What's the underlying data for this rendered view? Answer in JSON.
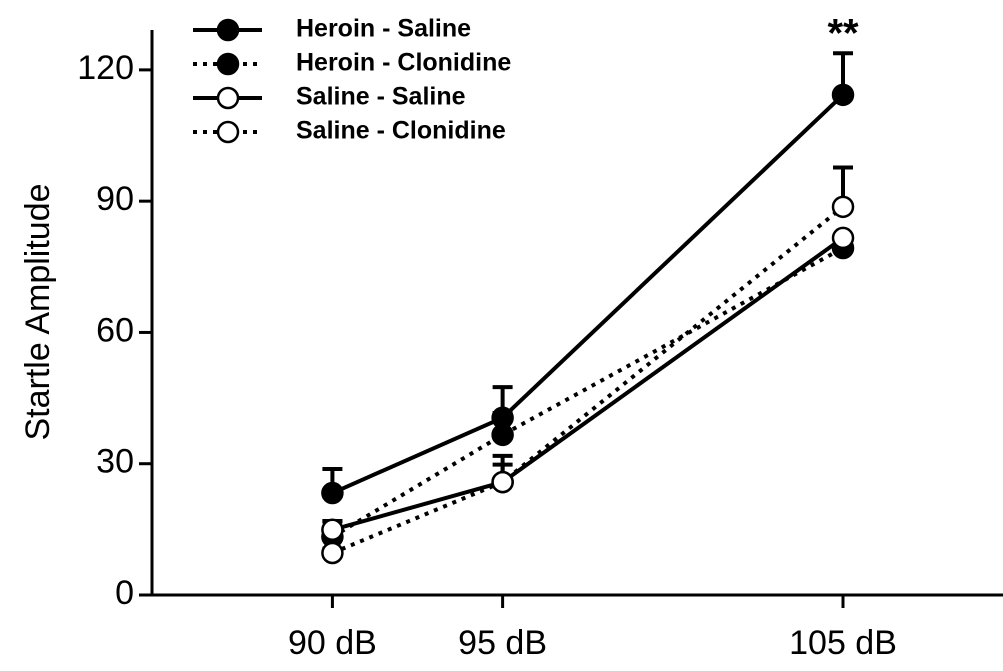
{
  "chart_data": {
    "type": "line",
    "y_label": "Startle Amplitude",
    "x": [
      {
        "value": 90,
        "label": "90 dB"
      },
      {
        "value": 95,
        "label": "95 dB"
      },
      {
        "value": 105,
        "label": "105 dB"
      }
    ],
    "xlim": [
      84.7,
      109.7
    ],
    "ylim": [
      0,
      125
    ],
    "yticks": [
      0,
      30,
      60,
      90,
      120
    ],
    "series": [
      {
        "name": "Heroin - Saline",
        "color": "#000000",
        "dash": "solid",
        "marker": "filled",
        "values": [
          23.3,
          40.5,
          114.3
        ],
        "errors": [
          5.5,
          7,
          9.5
        ]
      },
      {
        "name": "Heroin - Clonidine",
        "color": "#000000",
        "dash": "dotted",
        "marker": "filled",
        "values": [
          13.3,
          36.6,
          79.3
        ],
        "errors": [
          3.5,
          5,
          0
        ]
      },
      {
        "name": "Saline - Saline",
        "color": "#000000",
        "dash": "solid",
        "marker": "open",
        "values": [
          14.9,
          25.8,
          81.6
        ],
        "errors": [
          2,
          6,
          0
        ]
      },
      {
        "name": "Saline - Clonidine",
        "color": "#000000",
        "dash": "dotted",
        "marker": "open",
        "values": [
          9.6,
          25.8,
          88.7
        ],
        "errors": [
          1,
          4,
          9
        ]
      }
    ],
    "annotations": [
      {
        "text": "**",
        "x": 105,
        "y": 130
      }
    ]
  }
}
